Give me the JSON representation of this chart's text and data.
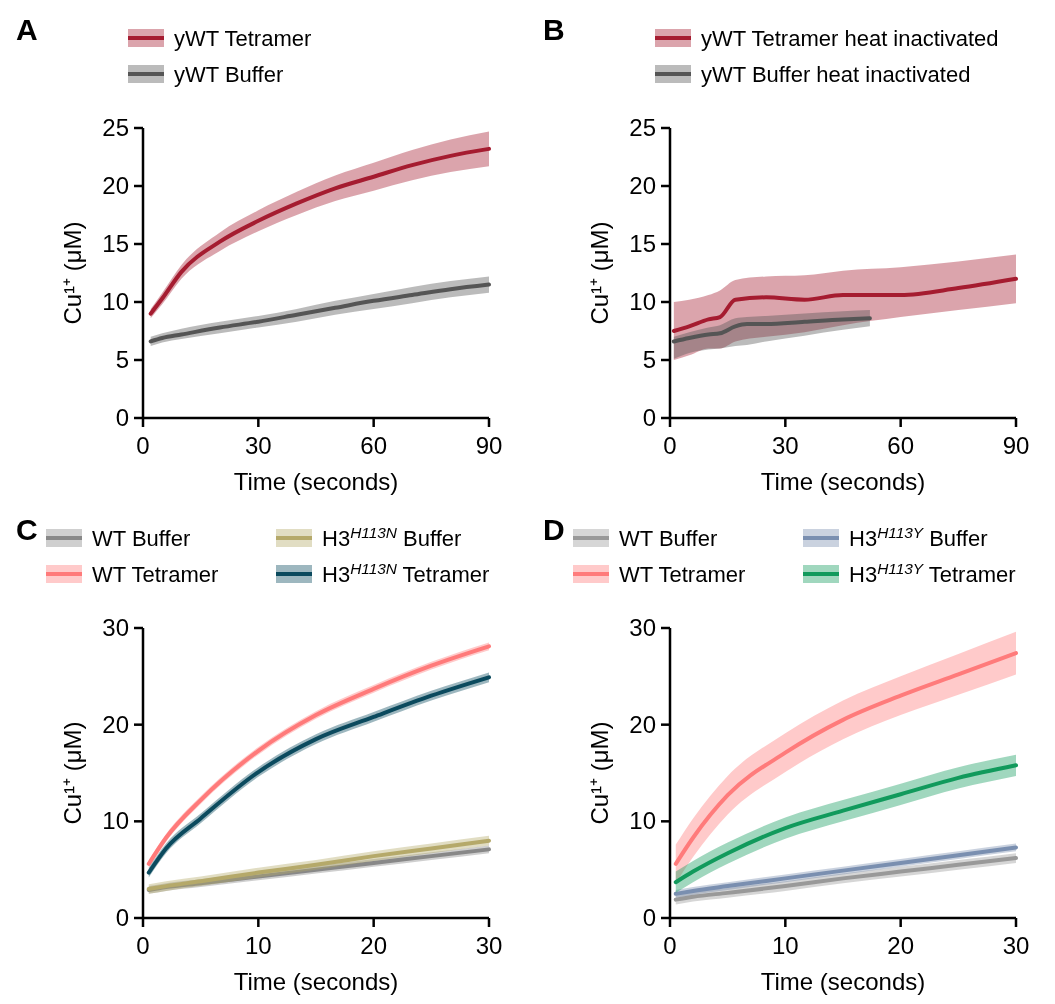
{
  "chart_data": [
    {
      "type": "line",
      "title": "A",
      "xlabel": "Time (seconds)",
      "ylabel": "Cu¹⁺ (μM)",
      "legend": "top",
      "xlim": [
        0,
        90
      ],
      "xticks": [
        0,
        30,
        60,
        90
      ],
      "ylim": [
        0,
        25
      ],
      "yticks": [
        0,
        5,
        10,
        15,
        20,
        25
      ],
      "x": [
        2,
        5,
        10,
        20,
        30,
        40,
        50,
        60,
        70,
        80,
        90
      ],
      "series": [
        {
          "name": "yWT Tetramer",
          "color": "#a51c30",
          "values": [
            9,
            10.3,
            12.6,
            15.2,
            17,
            18.5,
            19.8,
            20.8,
            21.8,
            22.6,
            23.2
          ],
          "lower": [
            8.6,
            9.8,
            12,
            14.4,
            16.1,
            17.5,
            18.7,
            19.6,
            20.5,
            21.2,
            21.7
          ],
          "upper": [
            9.4,
            10.8,
            13.2,
            16,
            17.9,
            19.5,
            20.9,
            22,
            23.1,
            24,
            24.7
          ]
        },
        {
          "name": "yWT Buffer",
          "color": "#555555",
          "values": [
            6.6,
            6.9,
            7.2,
            7.8,
            8.3,
            8.9,
            9.5,
            10.1,
            10.6,
            11.1,
            11.5
          ],
          "lower": [
            6.2,
            6.5,
            6.8,
            7.3,
            7.8,
            8.3,
            8.9,
            9.4,
            9.9,
            10.4,
            10.8
          ],
          "upper": [
            7,
            7.3,
            7.7,
            8.3,
            8.8,
            9.4,
            10.1,
            10.7,
            11.3,
            11.8,
            12.2
          ]
        }
      ]
    },
    {
      "type": "line",
      "title": "B",
      "xlabel": "Time (seconds)",
      "ylabel": "Cu¹⁺ (μM)",
      "legend": "top",
      "xlim": [
        0,
        90
      ],
      "xticks": [
        0,
        30,
        60,
        90
      ],
      "ylim": [
        0,
        25
      ],
      "yticks": [
        0,
        5,
        10,
        15,
        20,
        25
      ],
      "x": [
        1,
        5,
        10,
        13,
        17,
        25,
        35,
        45,
        60,
        75,
        90
      ],
      "series": [
        {
          "name": "yWT Tetramer heat inactivated",
          "color": "#a51c30",
          "values": [
            7.5,
            7.9,
            8.5,
            8.7,
            10.2,
            10.4,
            10.2,
            10.6,
            10.6,
            11.2,
            12
          ],
          "lower": [
            5,
            5.4,
            6,
            6,
            6.6,
            7,
            7.4,
            8,
            8.7,
            9.3,
            9.9
          ],
          "upper": [
            10,
            10.2,
            10.6,
            11,
            11.9,
            12.2,
            12.3,
            12.7,
            13,
            13.5,
            14.1
          ]
        },
        {
          "name": "yWT Buffer heat inactivated",
          "color": "#555555",
          "x": [
            1,
            5,
            10,
            13,
            17,
            20,
            25,
            35,
            45,
            52
          ],
          "values": [
            6.6,
            6.9,
            7.2,
            7.3,
            7.9,
            8.1,
            8.1,
            8.3,
            8.5,
            8.6
          ],
          "lower": [
            5.1,
            5.6,
            5.9,
            6,
            6.2,
            6.3,
            6.6,
            7.1,
            7.6,
            7.9
          ],
          "upper": [
            7,
            7.4,
            7.8,
            8,
            8.6,
            8.7,
            8.8,
            9,
            9.2,
            9.3
          ]
        }
      ]
    },
    {
      "type": "line",
      "title": "C",
      "xlabel": "Time (seconds)",
      "ylabel": "Cu¹⁺ (μM)",
      "legend": "top",
      "xlim": [
        0,
        30
      ],
      "xticks": [
        0,
        10,
        20,
        30
      ],
      "ylim": [
        0,
        30
      ],
      "yticks": [
        0,
        10,
        20,
        30
      ],
      "x": [
        0.5,
        2,
        5,
        10,
        15,
        20,
        25,
        30
      ],
      "series": [
        {
          "name": "WT Buffer",
          "color": "#888888",
          "values": [
            2.9,
            3.2,
            3.6,
            4.3,
            5,
            5.7,
            6.4,
            7.1
          ],
          "lower": [
            2.5,
            2.8,
            3.2,
            3.9,
            4.6,
            5.3,
            6,
            6.7
          ],
          "upper": [
            3.3,
            3.6,
            4,
            4.7,
            5.4,
            6.1,
            6.8,
            7.5
          ]
        },
        {
          "name": "WT Tetramer",
          "color": "#ff7a7a",
          "values": [
            5.6,
            8.3,
            12.2,
            17.3,
            21,
            23.7,
            26.1,
            28.1
          ],
          "lower": [
            5.2,
            7.9,
            11.8,
            16.9,
            20.6,
            23.3,
            25.7,
            27.7
          ],
          "upper": [
            6,
            8.7,
            12.6,
            17.7,
            21.4,
            24.1,
            26.5,
            28.5
          ]
        },
        {
          "name": "H3$^{H113N}$ Buffer",
          "color": "#b5a96a",
          "values": [
            3,
            3.3,
            3.8,
            4.7,
            5.5,
            6.4,
            7.2,
            8
          ],
          "lower": [
            2.5,
            2.8,
            3.3,
            4.2,
            5,
            5.9,
            6.7,
            7.5
          ],
          "upper": [
            3.5,
            3.8,
            4.3,
            5.2,
            6,
            6.9,
            7.7,
            8.5
          ]
        },
        {
          "name": "H3$^{H113N}$ Tetramer",
          "color": "#0b4a5e",
          "values": [
            4.7,
            7.2,
            10.3,
            15.1,
            18.5,
            20.8,
            23,
            24.9
          ],
          "lower": [
            4.2,
            6.7,
            9.8,
            14.6,
            18,
            20.3,
            22.5,
            24.4
          ],
          "upper": [
            5.2,
            7.7,
            10.8,
            15.6,
            19,
            21.3,
            23.5,
            25.4
          ]
        }
      ]
    },
    {
      "type": "line",
      "title": "D",
      "xlabel": "Time (seconds)",
      "ylabel": "Cu¹⁺ (μM)",
      "legend": "top",
      "xlim": [
        0,
        30
      ],
      "xticks": [
        0,
        10,
        20,
        30
      ],
      "ylim": [
        0,
        30
      ],
      "yticks": [
        0,
        10,
        20,
        30
      ],
      "x": [
        0.5,
        2,
        5,
        10,
        15,
        20,
        25,
        30
      ],
      "series": [
        {
          "name": "WT Buffer",
          "color": "#999999",
          "values": [
            1.9,
            2.2,
            2.6,
            3.3,
            4.1,
            4.8,
            5.5,
            6.2
          ],
          "lower": [
            1.4,
            1.7,
            2.1,
            2.8,
            3.6,
            4.3,
            5,
            5.7
          ],
          "upper": [
            2.4,
            2.7,
            3.1,
            3.8,
            4.6,
            5.3,
            6,
            6.7
          ]
        },
        {
          "name": "WT Tetramer",
          "color": "#ff7b7b",
          "values": [
            5.6,
            8.3,
            12.7,
            17.1,
            20.5,
            23,
            25.2,
            27.4
          ],
          "lower": [
            3.6,
            6.3,
            10.7,
            15.1,
            18.5,
            21,
            23.1,
            25.2
          ],
          "upper": [
            7.6,
            10.3,
            14.7,
            19.1,
            22.5,
            25,
            27.3,
            29.6
          ]
        },
        {
          "name": "H3$^{H113Y}$ Buffer",
          "color": "#7a8fb0",
          "values": [
            2.5,
            2.8,
            3.3,
            4.1,
            4.9,
            5.7,
            6.5,
            7.3
          ],
          "lower": [
            2.1,
            2.4,
            2.9,
            3.7,
            4.5,
            5.3,
            6.1,
            6.9
          ],
          "upper": [
            2.9,
            3.2,
            3.7,
            4.5,
            5.3,
            6.1,
            6.9,
            7.7
          ]
        },
        {
          "name": "H3$^{H113Y}$ Tetramer",
          "color": "#119a5c",
          "values": [
            3.7,
            4.8,
            6.7,
            9.3,
            11.1,
            12.8,
            14.5,
            15.8
          ],
          "lower": [
            2.6,
            3.7,
            5.6,
            8.2,
            10,
            11.7,
            13.4,
            14.7
          ],
          "upper": [
            4.8,
            5.9,
            7.8,
            10.4,
            12.2,
            13.9,
            15.6,
            16.9
          ]
        }
      ]
    }
  ]
}
